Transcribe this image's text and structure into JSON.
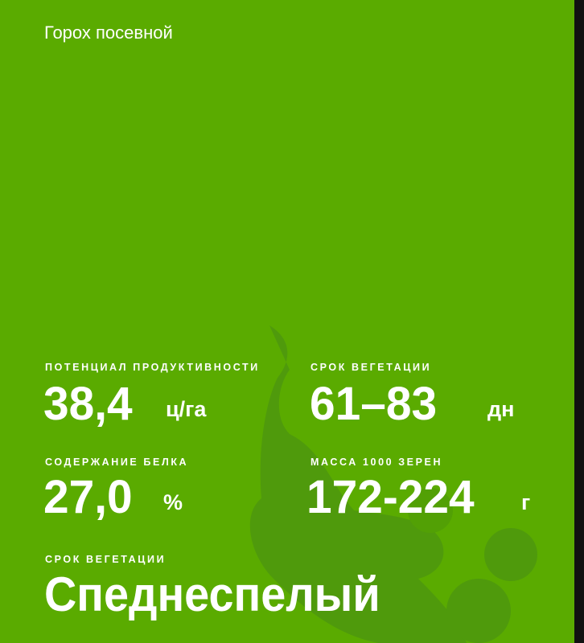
{
  "colors": {
    "background": "#5aab00",
    "shape": "#4f9a0c",
    "text": "#ffffff"
  },
  "title": "Горох посевной",
  "stats": [
    {
      "label": "ПОТЕНЦИАЛ ПРОДУКТИВНОСТИ",
      "value": "38,4",
      "unit": "ц/га"
    },
    {
      "label": "СРОК ВЕГЕТАЦИИ",
      "value": "61–83",
      "unit": "дн"
    },
    {
      "label": "СОДЕРЖАНИЕ БЕЛКА",
      "value": "27,0",
      "unit": "%"
    },
    {
      "label": "МАССА 1000 ЗЕРЕН",
      "value": "172-224",
      "unit": "г"
    }
  ],
  "maturity": {
    "label": "СРОК ВЕГЕТАЦИИ",
    "value": "Спеднеспелый"
  }
}
